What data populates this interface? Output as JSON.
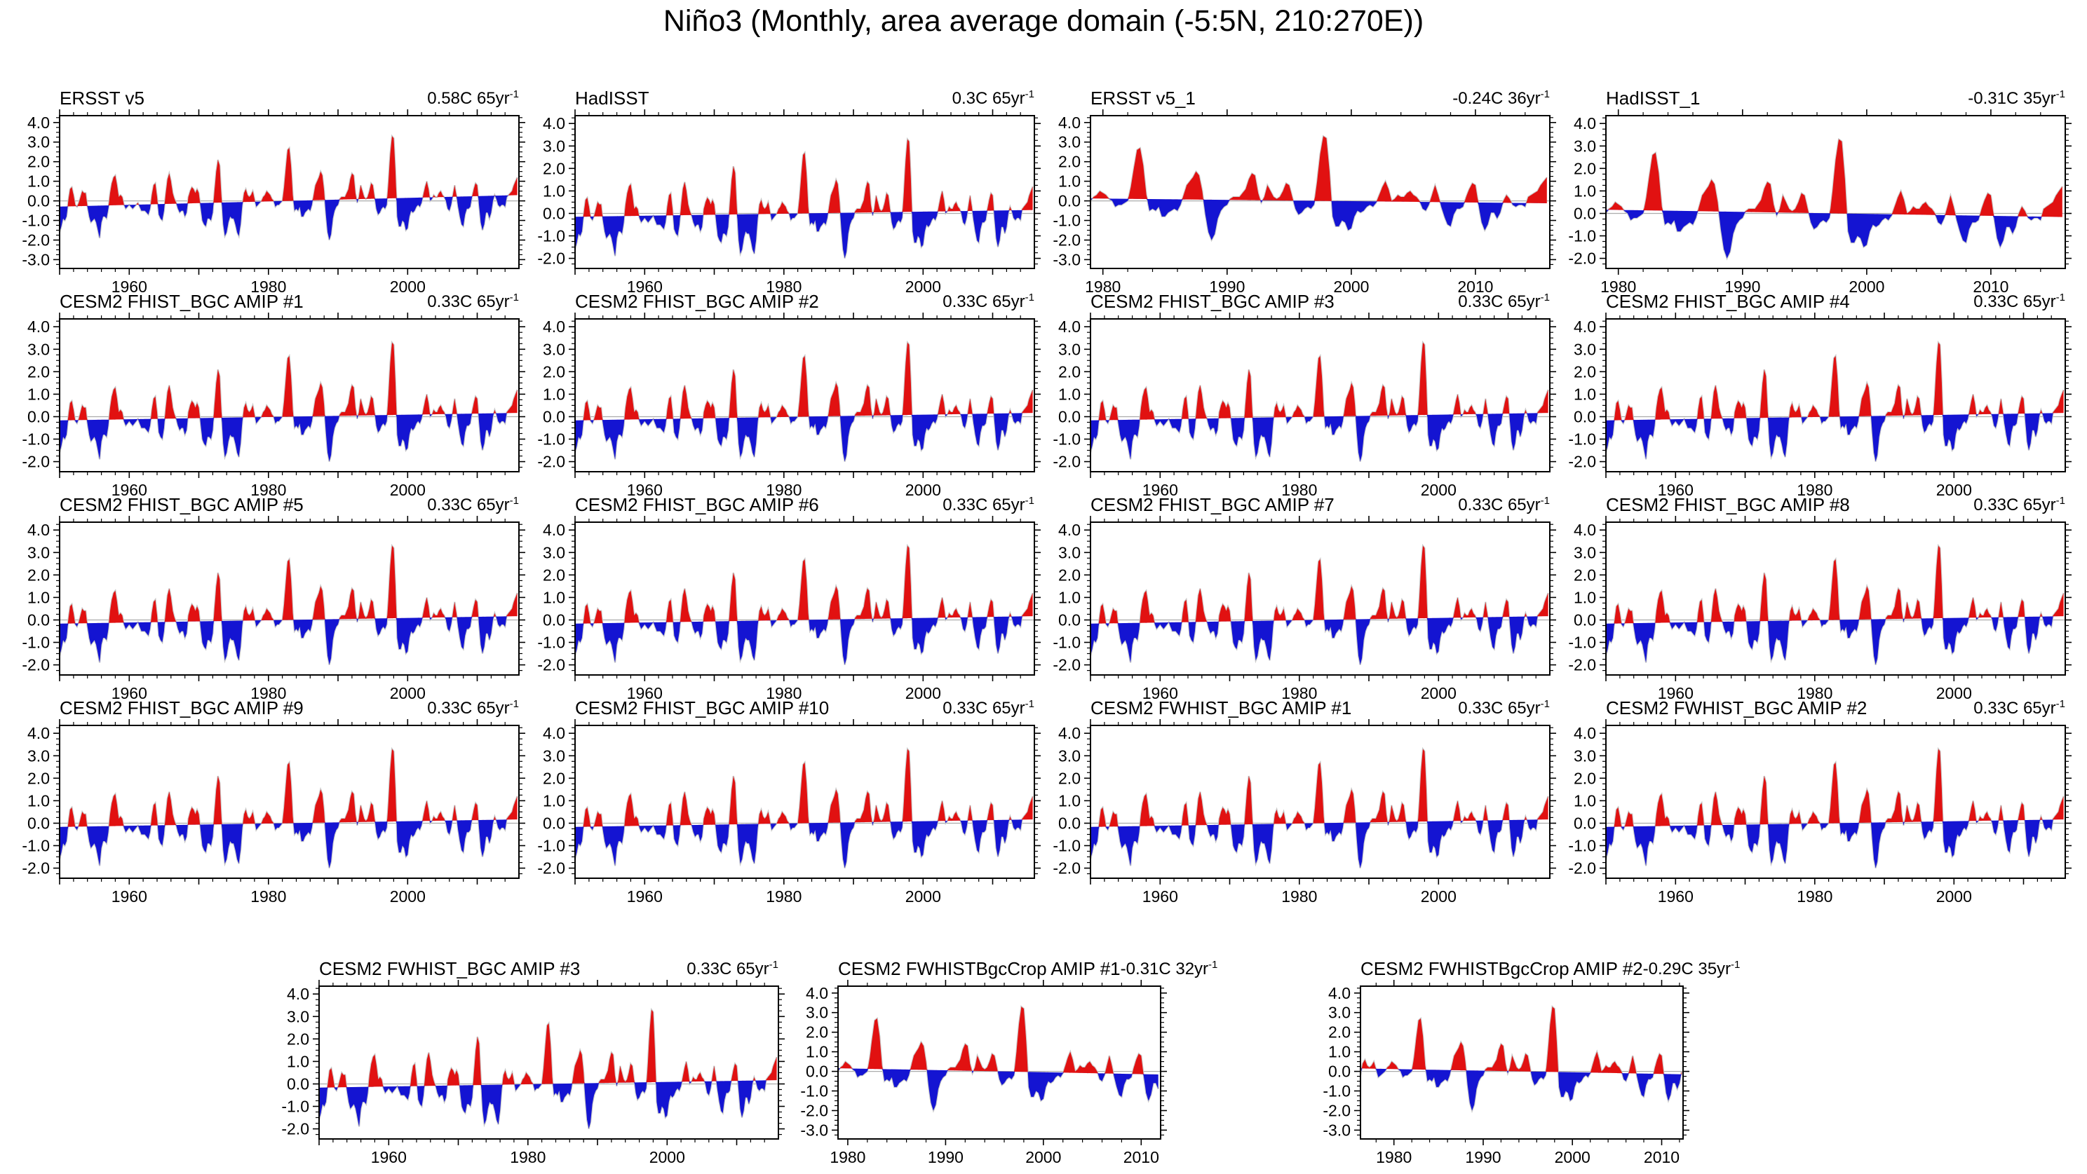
{
  "title": "Niño3 (Monthly, area average domain (-5:5N, 210:270E))",
  "colors": {
    "positive": "#e11111",
    "negative": "#1414d2",
    "zero_line": "#ababab",
    "outline": "#c9c9c9",
    "axis": "#000000",
    "background": "#ffffff"
  },
  "chart_data": {
    "type": "area",
    "title": "Niño3 (Monthly, area average domain (-5:5N, 210:270E))",
    "xlabel": "",
    "ylabel": "",
    "units": "degC",
    "grid": false,
    "legend": "none",
    "fill_rule": "red above linear trend line, blue below; thin gray zero line",
    "series": {
      "name": "nino3_monthly_sst_anomaly",
      "start_year": 1950,
      "step_years": 0.25,
      "values": [
        -1.6,
        -1.3,
        -0.9,
        -1.0,
        -0.8,
        0.0,
        0.6,
        0.7,
        0.3,
        -0.2,
        -0.3,
        -0.1,
        0.2,
        0.5,
        0.4,
        0.4,
        -0.3,
        -0.8,
        -1.1,
        -1.0,
        -0.9,
        -1.1,
        -1.5,
        -1.9,
        -1.1,
        -0.8,
        -0.8,
        -0.9,
        -0.4,
        0.4,
        0.9,
        1.2,
        1.3,
        0.8,
        0.2,
        0.3,
        0.2,
        -0.2,
        -0.4,
        -0.3,
        -0.2,
        -0.3,
        -0.4,
        -0.3,
        -0.2,
        -0.1,
        -0.3,
        -0.5,
        -0.5,
        -0.5,
        -0.6,
        -0.7,
        -0.4,
        0.3,
        0.8,
        0.9,
        0.2,
        -0.7,
        -0.9,
        -1.0,
        -0.5,
        0.4,
        1.1,
        1.4,
        1.0,
        0.4,
        0.1,
        -0.1,
        -0.4,
        -0.6,
        -0.5,
        -0.5,
        -0.8,
        -0.6,
        0.2,
        0.5,
        0.7,
        0.6,
        0.4,
        0.6,
        0.4,
        -0.3,
        -1.0,
        -1.2,
        -1.3,
        -0.9,
        -0.9,
        -1.0,
        -0.6,
        0.5,
        1.5,
        2.1,
        1.8,
        0.2,
        -1.2,
        -1.8,
        -1.6,
        -1.1,
        -0.8,
        -0.9,
        -0.9,
        -1.2,
        -1.6,
        -1.8,
        -1.2,
        -0.2,
        0.4,
        0.6,
        0.3,
        0.2,
        0.3,
        0.5,
        0.1,
        -0.3,
        -0.2,
        -0.1,
        0.0,
        0.2,
        0.3,
        0.5,
        0.4,
        0.3,
        0.1,
        0.0,
        -0.3,
        -0.2,
        -0.2,
        -0.1,
        0.0,
        0.7,
        1.7,
        2.6,
        2.7,
        1.8,
        0.3,
        -0.5,
        -0.4,
        -0.5,
        -0.3,
        -0.8,
        -0.8,
        -0.6,
        -0.5,
        -0.4,
        -0.5,
        -0.2,
        0.3,
        0.8,
        1.0,
        1.2,
        1.5,
        1.3,
        0.5,
        -0.7,
        -1.6,
        -2.0,
        -1.7,
        -0.9,
        -0.5,
        -0.3,
        -0.2,
        0.1,
        0.2,
        0.2,
        0.2,
        0.4,
        0.6,
        1.1,
        1.4,
        1.3,
        0.4,
        -0.1,
        0.2,
        0.8,
        0.5,
        0.2,
        0.1,
        0.2,
        0.5,
        0.9,
        0.8,
        0.2,
        -0.4,
        -0.7,
        -0.6,
        -0.4,
        -0.3,
        -0.4,
        -0.2,
        1.0,
        2.4,
        3.3,
        3.2,
        1.5,
        -0.8,
        -1.3,
        -1.3,
        -1.0,
        -1.1,
        -1.5,
        -1.4,
        -0.8,
        -0.5,
        -0.6,
        -0.5,
        -0.3,
        -0.2,
        -0.3,
        -0.1,
        0.3,
        0.7,
        1.0,
        0.6,
        0.0,
        0.1,
        0.3,
        0.2,
        0.2,
        0.4,
        0.5,
        0.3,
        0.2,
        0.0,
        -0.4,
        -0.5,
        -0.2,
        0.3,
        0.8,
        0.3,
        -0.3,
        -0.8,
        -1.2,
        -1.3,
        -0.7,
        -0.4,
        -0.4,
        -0.3,
        0.2,
        0.6,
        0.9,
        0.8,
        -0.2,
        -1.1,
        -1.5,
        -1.2,
        -0.6,
        -0.6,
        -0.9,
        -0.6,
        0.0,
        0.3,
        0.1,
        -0.2,
        -0.3,
        -0.2,
        -0.2,
        -0.3,
        0.2,
        0.3,
        0.4,
        0.5,
        0.8,
        1.0,
        1.2
      ]
    },
    "panels": [
      {
        "title": "ERSST v5",
        "trend": "0.58C 65yr",
        "trend_sup": "-1",
        "xlim": [
          1950,
          2015.99
        ],
        "xticks": [
          1960,
          1980,
          2000
        ],
        "ymin": -3
      },
      {
        "title": "HadISST",
        "trend": "0.3C 65yr",
        "trend_sup": "-1",
        "xlim": [
          1950,
          2015.99
        ],
        "xticks": [
          1960,
          1980,
          2000
        ],
        "ymin": -2
      },
      {
        "title": "ERSST v5_1",
        "trend": "-0.24C 36yr",
        "trend_sup": "-1",
        "xlim": [
          1979,
          2015.99
        ],
        "xticks": [
          1980,
          1990,
          2000,
          2010
        ],
        "ymin": -3
      },
      {
        "title": "HadISST_1",
        "trend": "-0.31C 35yr",
        "trend_sup": "-1",
        "xlim": [
          1979,
          2015.99
        ],
        "xticks": [
          1980,
          1990,
          2000,
          2010
        ],
        "ymin": -2
      },
      {
        "title": "CESM2 FHIST_BGC AMIP #1",
        "trend": "0.33C 65yr",
        "trend_sup": "-1",
        "xlim": [
          1950,
          2015.99
        ],
        "xticks": [
          1960,
          1980,
          2000
        ],
        "ymin": -2
      },
      {
        "title": "CESM2 FHIST_BGC AMIP #2",
        "trend": "0.33C 65yr",
        "trend_sup": "-1",
        "xlim": [
          1950,
          2015.99
        ],
        "xticks": [
          1960,
          1980,
          2000
        ],
        "ymin": -2
      },
      {
        "title": "CESM2 FHIST_BGC AMIP #3",
        "trend": "0.33C 65yr",
        "trend_sup": "-1",
        "xlim": [
          1950,
          2015.99
        ],
        "xticks": [
          1960,
          1980,
          2000
        ],
        "ymin": -2
      },
      {
        "title": "CESM2 FHIST_BGC AMIP #4",
        "trend": "0.33C 65yr",
        "trend_sup": "-1",
        "xlim": [
          1950,
          2015.99
        ],
        "xticks": [
          1960,
          1980,
          2000
        ],
        "ymin": -2
      },
      {
        "title": "CESM2 FHIST_BGC AMIP #5",
        "trend": "0.33C 65yr",
        "trend_sup": "-1",
        "xlim": [
          1950,
          2015.99
        ],
        "xticks": [
          1960,
          1980,
          2000
        ],
        "ymin": -2
      },
      {
        "title": "CESM2 FHIST_BGC AMIP #6",
        "trend": "0.33C 65yr",
        "trend_sup": "-1",
        "xlim": [
          1950,
          2015.99
        ],
        "xticks": [
          1960,
          1980,
          2000
        ],
        "ymin": -2
      },
      {
        "title": "CESM2 FHIST_BGC AMIP #7",
        "trend": "0.33C 65yr",
        "trend_sup": "-1",
        "xlim": [
          1950,
          2015.99
        ],
        "xticks": [
          1960,
          1980,
          2000
        ],
        "ymin": -2
      },
      {
        "title": "CESM2 FHIST_BGC AMIP #8",
        "trend": "0.33C 65yr",
        "trend_sup": "-1",
        "xlim": [
          1950,
          2015.99
        ],
        "xticks": [
          1960,
          1980,
          2000
        ],
        "ymin": -2
      },
      {
        "title": "CESM2 FHIST_BGC AMIP #9",
        "trend": "0.33C 65yr",
        "trend_sup": "-1",
        "xlim": [
          1950,
          2015.99
        ],
        "xticks": [
          1960,
          1980,
          2000
        ],
        "ymin": -2
      },
      {
        "title": "CESM2 FHIST_BGC AMIP #10",
        "trend": "0.33C 65yr",
        "trend_sup": "-1",
        "xlim": [
          1950,
          2015.99
        ],
        "xticks": [
          1960,
          1980,
          2000
        ],
        "ymin": -2
      },
      {
        "title": "CESM2 FWHIST_BGC AMIP #1",
        "trend": "0.33C 65yr",
        "trend_sup": "-1",
        "xlim": [
          1950,
          2015.99
        ],
        "xticks": [
          1960,
          1980,
          2000
        ],
        "ymin": -2
      },
      {
        "title": "CESM2 FWHIST_BGC AMIP #2",
        "trend": "0.33C 65yr",
        "trend_sup": "-1",
        "xlim": [
          1950,
          2015.99
        ],
        "xticks": [
          1960,
          1980,
          2000
        ],
        "ymin": -2
      },
      {
        "title": "CESM2 FWHIST_BGC AMIP #3",
        "trend": "0.33C 65yr",
        "trend_sup": "-1",
        "xlim": [
          1950,
          2015.99
        ],
        "xticks": [
          1960,
          1980,
          2000
        ],
        "ymin": -2
      },
      {
        "title": "CESM2 FWHISTBgcCrop AMIP #1",
        "trend": "-0.31C 32yr",
        "trend_sup": "-1",
        "xlim": [
          1979,
          2011.99
        ],
        "xticks": [
          1980,
          1990,
          2000,
          2010
        ],
        "ymin": -3,
        "narrow": true
      },
      {
        "title": "CESM2 FWHISTBgcCrop AMIP #2",
        "trend": "-0.29C 35yr",
        "trend_sup": "-1",
        "xlim": [
          1976.25,
          2012.4
        ],
        "xticks": [
          1980,
          1990,
          2000,
          2010
        ],
        "ymin": -3,
        "narrow": true
      }
    ],
    "yticks_labeled": {
      "ymin_-2": [
        -2,
        -1,
        0,
        1,
        2,
        3,
        4
      ],
      "ymin_-3": [
        -3,
        -2,
        -1,
        0,
        1,
        2,
        3,
        4
      ]
    }
  }
}
